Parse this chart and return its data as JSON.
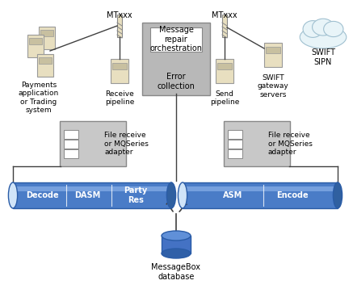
{
  "bg_color": "#ffffff",
  "title": "",
  "elements": {
    "mtxxx_left_label": "MTxxx",
    "mtxxx_right_label": "MTxxx",
    "payments_label": "Payments\napplication\nor Trading\nsystem",
    "receive_pipeline_label": "Receive\npipeline",
    "send_pipeline_label": "Send\npipeline",
    "swift_gateway_label": "SWIFT\ngateway\nservers",
    "swift_sipn_label": "SWIFT\nSIPN",
    "message_repair_label": "Message\nrepair\norchestration",
    "error_collection_label": "Error\ncollection",
    "file_receive_left_label": "File receive\nor MQSeries\nadapter",
    "file_receive_right_label": "File receive\nor MQSeries\nadapter",
    "messagebox_label": "MessageBox\ndatabase",
    "decode_label": "Decode",
    "dasm_label": "DASM",
    "party_res_label": "Party\nRes",
    "asm_label": "ASM",
    "encode_label": "Encode"
  },
  "colors": {
    "server_body": "#e8dfc0",
    "server_screen": "#c8c0a0",
    "gray_box": "#b8b8b8",
    "light_gray_box": "#d0d0d0",
    "white_box": "#ffffff",
    "pipeline_blue": "#4a7cc7",
    "pipeline_highlight": "#8ab0e8",
    "pipeline_left_cap": "#d0e4f8",
    "pipeline_right_cap": "#3060a0",
    "cloud_fill": "#e8f4f8",
    "cloud_stroke": "#a0c0d0",
    "adapter_box": "#c8c8c8",
    "adapter_inner": "#f0f0f0",
    "line_color": "#404040",
    "text_color": "#000000",
    "db_blue": "#4472c4",
    "db_top": "#6090d8",
    "db_bottom": "#3060a8",
    "bg_color": "#ffffff"
  }
}
